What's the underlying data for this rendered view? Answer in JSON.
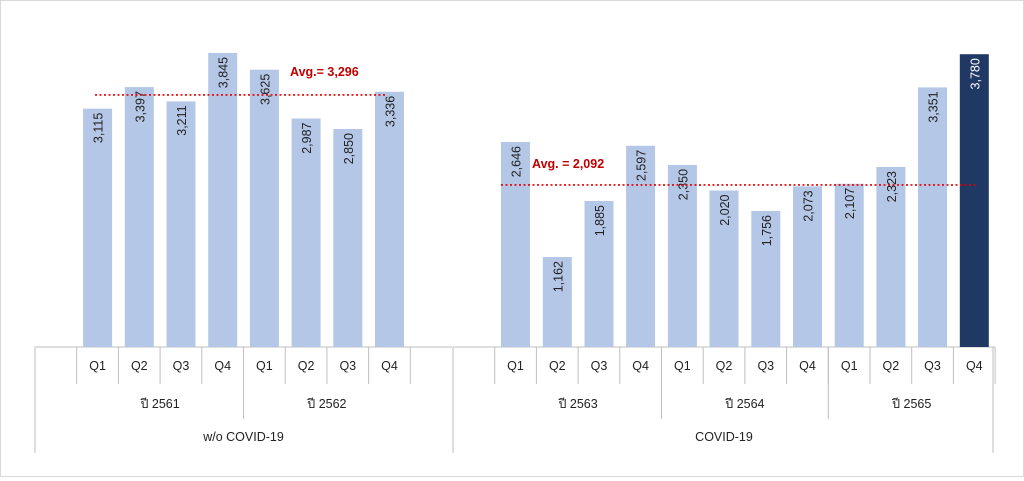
{
  "chart_data": {
    "type": "bar",
    "colors": {
      "bar": "#b4c7e7",
      "highlight": "#203864",
      "avg_line": "#e00000",
      "avg_text": "#c00000",
      "axis": "#bfbfbf"
    },
    "groups": [
      {
        "name": "w/o COVID-19",
        "ylim": [
          0,
          4000
        ],
        "years": [
          {
            "label": "ปี 2561",
            "quarters": [
              "Q1",
              "Q2",
              "Q3",
              "Q4"
            ],
            "values": [
              3115,
              3397,
              3211,
              3845
            ],
            "labels": [
              "3,115",
              "3,397",
              "3,211",
              "3,845"
            ]
          },
          {
            "label": "ปี 2562",
            "quarters": [
              "Q1",
              "Q2",
              "Q3",
              "Q4"
            ],
            "values": [
              3625,
              2987,
              2850,
              3336
            ],
            "labels": [
              "3,625",
              "2,987",
              "2,850",
              "3,336"
            ]
          }
        ],
        "average": {
          "value": 3296,
          "label": "Avg.= 3,296"
        }
      },
      {
        "name": "COVID-19",
        "ylim": [
          0,
          3950
        ],
        "years": [
          {
            "label": "ปี 2563",
            "quarters": [
              "Q1",
              "Q2",
              "Q3",
              "Q4"
            ],
            "values": [
              2646,
              1162,
              1885,
              2597
            ],
            "labels": [
              "2,646",
              "1,162",
              "1,885",
              "2,597"
            ]
          },
          {
            "label": "ปี 2564",
            "quarters": [
              "Q1",
              "Q2",
              "Q3",
              "Q4"
            ],
            "values": [
              2350,
              2020,
              1756,
              2073
            ],
            "labels": [
              "2,350",
              "2,020",
              "1,756",
              "2,073"
            ]
          },
          {
            "label": "ปี 2565",
            "quarters": [
              "Q1",
              "Q2",
              "Q3",
              "Q4"
            ],
            "values": [
              2107,
              2323,
              3351,
              3780
            ],
            "labels": [
              "2,107",
              "2,323",
              "3,351",
              "3,780"
            ],
            "highlight_last": true
          }
        ],
        "average": {
          "value": 2092,
          "label": "Avg. = 2,092"
        }
      }
    ]
  }
}
